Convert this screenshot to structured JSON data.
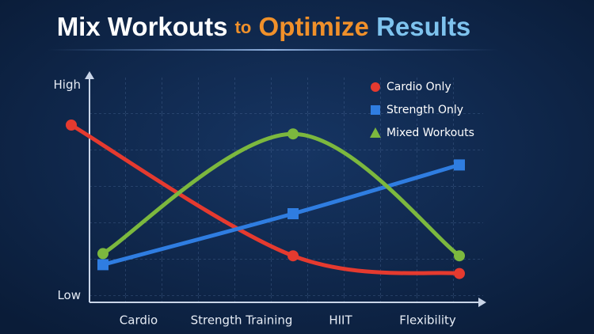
{
  "chart_data": {
    "type": "line",
    "title": [
      "Mix Workouts",
      "to",
      "Optimize",
      "Results"
    ],
    "xlim": [
      0,
      11
    ],
    "xticks": [
      {
        "value": 2.3,
        "label": "Cardio"
      },
      {
        "value": 4.9,
        "label": "Strength Training"
      },
      {
        "value": 7.4,
        "label": "HIIT"
      },
      {
        "value": 9.6,
        "label": "Flexibility"
      }
    ],
    "ylim": [
      0,
      10
    ],
    "yticks": [
      {
        "value": 0.3,
        "label": "Low"
      },
      {
        "value": 9.8,
        "label": "High"
      }
    ],
    "legend": "top-right",
    "series": [
      {
        "name": "Cardio Only",
        "color": "#e53a2f",
        "marker": "circle",
        "x": [
          0.6,
          6.2,
          10.4
        ],
        "values": [
          8.0,
          2.1,
          1.3
        ]
      },
      {
        "name": "Strength Only",
        "color": "#2f7de1",
        "marker": "square",
        "x": [
          1.4,
          6.2,
          10.4
        ],
        "values": [
          1.7,
          4.0,
          6.2
        ]
      },
      {
        "name": "Mixed Workouts",
        "color": "#7cb83e",
        "marker": "triangle",
        "x": [
          1.4,
          6.2,
          10.4
        ],
        "values": [
          2.2,
          7.6,
          2.1
        ]
      }
    ]
  }
}
